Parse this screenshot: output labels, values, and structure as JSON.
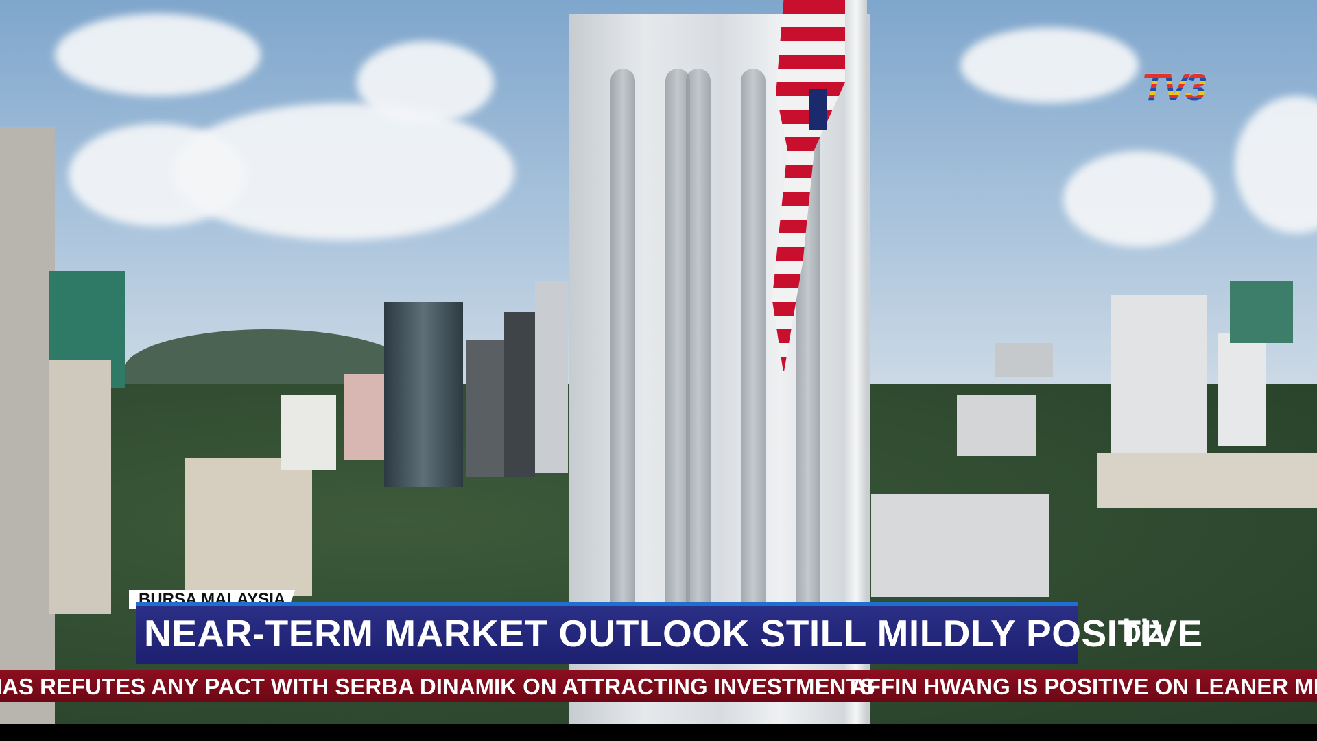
{
  "broadcast": {
    "channel_logo": "TV3",
    "program_logo": "biz",
    "section_tag": "BURSA MALAYSIA",
    "headline": "NEAR-TERM MARKET OUTLOOK STILL MILDLY POSITIVE",
    "ticker": {
      "items": [
        "IAS REFUTES ANY PACT WITH SERBA DINAMIK ON ATTRACTING INVESTMENTS",
        "AFFIN HWANG IS POSITIVE ON LEANER MEDIA"
      ],
      "separator": "•"
    }
  },
  "colors": {
    "headline_bg": "#24287c",
    "headline_border": "#1e6fd0",
    "ticker_bg": "#7d0b1a",
    "tag_bg": "#ffffff"
  }
}
